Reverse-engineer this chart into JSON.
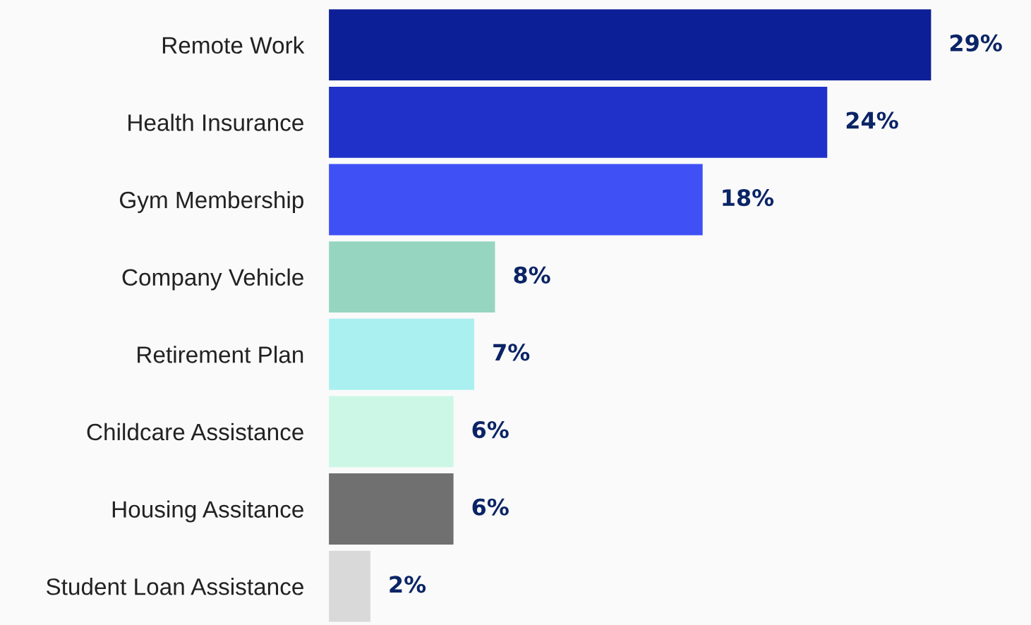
{
  "chart_data": {
    "type": "bar",
    "orientation": "horizontal",
    "categories": [
      "Remote Work",
      "Health Insurance",
      "Gym Membership",
      "Company Vehicle",
      "Retirement Plan",
      "Childcare Assistance",
      "Housing Assitance",
      "Student Loan Assistance"
    ],
    "values": [
      29,
      24,
      18,
      8,
      7,
      6,
      6,
      2
    ],
    "colors": [
      "#0d1f96",
      "#1f31c8",
      "#3f51f5",
      "#96d6c0",
      "#aaf0f0",
      "#ccf7e6",
      "#707070",
      "#d9d9d9"
    ],
    "value_labels": [
      "29%",
      "24%",
      "18%",
      "8%",
      "7%",
      "6%",
      "6%",
      "2%"
    ],
    "grid": false,
    "legend": false
  }
}
